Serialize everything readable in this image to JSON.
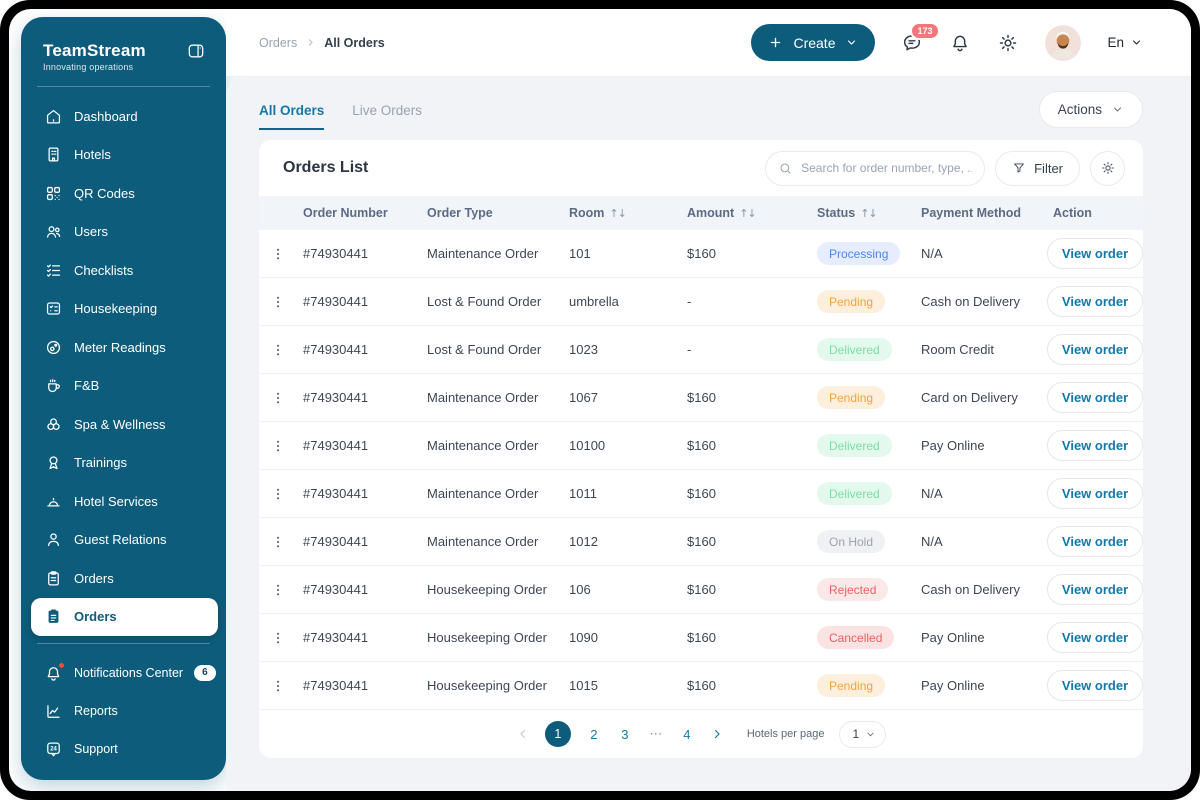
{
  "colors": {
    "frame": "#000000",
    "sidebar_bg": "#0D5C7C",
    "accent": "#0D5C7C",
    "link": "#1578A8",
    "content_bg": "#F2F3F6",
    "card_bg": "#FFFFFF",
    "table_header_bg": "#F1F5F9",
    "table_header_text": "#5B6B84",
    "badge_red_bg": "#F5777B",
    "status": {
      "processing": {
        "text": "#4C83F5",
        "bg": "#E6EDFE"
      },
      "pending": {
        "text": "#F6A33B",
        "bg": "#FDEFDC"
      },
      "delivered": {
        "text": "#7FDCA6",
        "bg": "#E3F9ED"
      },
      "onhold": {
        "text": "#9CA3AF",
        "bg": "#EFF1F4"
      },
      "rejected": {
        "text": "#ED5E5E",
        "bg": "#FBE9E9"
      },
      "cancelled": {
        "text": "#ED5E5E",
        "bg": "#FBE3E3"
      }
    }
  },
  "icons": {
    "sort": "↑↓"
  },
  "sidebar": {
    "logo": {
      "title": "TeamStream",
      "subtitle": "Innovating operations"
    },
    "items": [
      {
        "label": "Dashboard",
        "icon": "home"
      },
      {
        "label": "Hotels",
        "icon": "building"
      },
      {
        "label": "QR Codes",
        "icon": "qr"
      },
      {
        "label": "Users",
        "icon": "users"
      },
      {
        "label": "Checklists",
        "icon": "checklist"
      },
      {
        "label": "Housekeeping",
        "icon": "board"
      },
      {
        "label": "Meter Readings",
        "icon": "meter"
      },
      {
        "label": "F&B",
        "icon": "cup"
      },
      {
        "label": "Spa & Wellness",
        "icon": "flower"
      },
      {
        "label": "Trainings",
        "icon": "medal"
      },
      {
        "label": "Hotel Services",
        "icon": "bell-dome"
      },
      {
        "label": "Guest Relations",
        "icon": "person"
      },
      {
        "label": "Orders",
        "icon": "clipboard"
      },
      {
        "label": "Orders",
        "icon": "clipboard-filled",
        "state": "active"
      }
    ],
    "footer_items": [
      {
        "label": "Notifications Center",
        "icon": "bell",
        "dot": true,
        "badge": "6"
      },
      {
        "label": "Reports",
        "icon": "chart"
      },
      {
        "label": "Support",
        "icon": "support"
      }
    ]
  },
  "header": {
    "breadcrumb": {
      "parent": "Orders",
      "current": "All Orders"
    },
    "create_label": "Create",
    "chat_badge": "173",
    "language": "En"
  },
  "toolbar": {
    "tabs": [
      {
        "label": "All Orders",
        "state": "active"
      },
      {
        "label": "Live Orders"
      }
    ],
    "actions_label": "Actions"
  },
  "orders": {
    "title": "Orders List",
    "search_placeholder": "Search for order number, type, ...",
    "filter_label": "Filter",
    "view_order_label": "View order",
    "columns": [
      {
        "label": "Order Number"
      },
      {
        "label": "Order Type"
      },
      {
        "label": "Room",
        "sortable": true
      },
      {
        "label": "Amount",
        "sortable": true
      },
      {
        "label": "Status",
        "sortable": true
      },
      {
        "label": "Payment Method"
      },
      {
        "label": "Action"
      }
    ],
    "rows": [
      {
        "number": "#74930441",
        "type": "Maintenance Order",
        "room": "101",
        "amount": "$160",
        "status": "Processing",
        "status_key": "processing",
        "payment": "N/A"
      },
      {
        "number": "#74930441",
        "type": "Lost & Found Order",
        "room": "umbrella",
        "amount": "-",
        "status": "Pending",
        "status_key": "pending",
        "payment": "Cash on Delivery"
      },
      {
        "number": "#74930441",
        "type": "Lost & Found Order",
        "room": "1023",
        "amount": "-",
        "status": "Delivered",
        "status_key": "delivered",
        "payment": "Room Credit"
      },
      {
        "number": "#74930441",
        "type": "Maintenance Order",
        "room": "1067",
        "amount": "$160",
        "status": "Pending",
        "status_key": "pending",
        "payment": "Card on Delivery"
      },
      {
        "number": "#74930441",
        "type": "Maintenance Order",
        "room": "10100",
        "amount": "$160",
        "status": "Delivered",
        "status_key": "delivered",
        "payment": "Pay Online"
      },
      {
        "number": "#74930441",
        "type": "Maintenance Order",
        "room": "1011",
        "amount": "$160",
        "status": "Delivered",
        "status_key": "delivered",
        "payment": "N/A"
      },
      {
        "number": "#74930441",
        "type": "Maintenance Order",
        "room": "1012",
        "amount": "$160",
        "status": "On Hold",
        "status_key": "onhold",
        "payment": "N/A"
      },
      {
        "number": "#74930441",
        "type": "Housekeeping Order",
        "room": "106",
        "amount": "$160",
        "status": "Rejected",
        "status_key": "rejected",
        "payment": "Cash on Delivery"
      },
      {
        "number": "#74930441",
        "type": "Housekeeping Order",
        "room": "1090",
        "amount": "$160",
        "status": "Cancelled",
        "status_key": "cancelled",
        "payment": "Pay Online"
      },
      {
        "number": "#74930441",
        "type": "Housekeeping Order",
        "room": "1015",
        "amount": "$160",
        "status": "Pending",
        "status_key": "pending",
        "payment": "Pay Online"
      }
    ]
  },
  "pagination": {
    "pages": [
      {
        "label": "1",
        "state": "active"
      },
      {
        "label": "2"
      },
      {
        "label": "3"
      },
      {
        "label": "⋯",
        "state": "ellipsis",
        "interactable": false
      },
      {
        "label": "4"
      }
    ],
    "per_page_label": "Hotels per page",
    "per_page_value": "1"
  }
}
